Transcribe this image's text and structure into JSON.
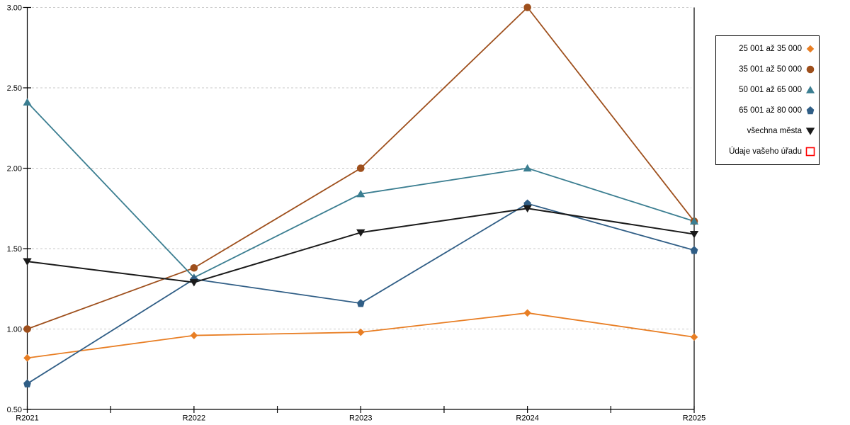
{
  "chart_data": {
    "type": "line",
    "title": "",
    "xlabel": "",
    "ylabel": "",
    "x_categories": [
      "R2021",
      "R2022",
      "R2023",
      "R2024",
      "R2025"
    ],
    "y_tick_labels": [
      "0.50",
      "1.00",
      "1.50",
      "2.00",
      "2.50",
      "3.00"
    ],
    "ylim": [
      0.5,
      3.0
    ],
    "y_tick_step": 0.5,
    "grid": "horizontal-dashed",
    "legend_position": "right-outside",
    "series": [
      {
        "name": "25 001 až 35 000",
        "marker": "diamond",
        "color": "#E87E24",
        "values": [
          0.82,
          0.96,
          0.98,
          1.1,
          0.95
        ]
      },
      {
        "name": "35 001 až 50 000",
        "marker": "circle",
        "color": "#9E4F1C",
        "values": [
          1.0,
          1.38,
          2.0,
          3.0,
          1.67
        ]
      },
      {
        "name": "50 001 až 65 000",
        "marker": "triangle-up",
        "color": "#3B7E91",
        "values": [
          2.41,
          1.32,
          1.84,
          2.0,
          1.67
        ]
      },
      {
        "name": "65 001 až 80 000",
        "marker": "pentagon",
        "color": "#305E86",
        "values": [
          0.66,
          1.31,
          1.16,
          1.78,
          1.49
        ]
      },
      {
        "name": "všechna města",
        "marker": "triangle-down",
        "color": "#1A1A1A",
        "values": [
          1.42,
          1.29,
          1.6,
          1.75,
          1.59
        ]
      },
      {
        "name": "Údaje vašeho úřadu",
        "marker": "square-open",
        "color": "#FF0000",
        "values": []
      }
    ]
  },
  "colors": {
    "background": "#FFFFFF",
    "gridline": "#C9C9C9",
    "axis": "#000000",
    "legend_border": "#000000"
  }
}
